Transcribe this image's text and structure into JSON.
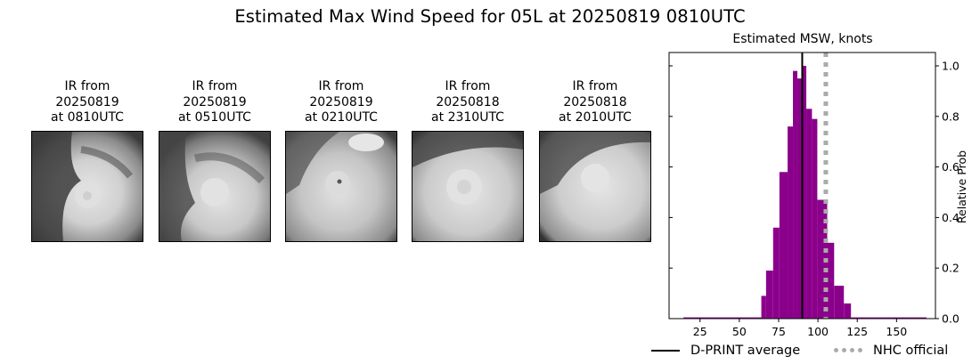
{
  "title": "Estimated Max Wind Speed for 05L at 20250819 0810UTC",
  "ir_panels": [
    {
      "line1": "IR from",
      "line2": "20250819",
      "line3": "at 0810UTC"
    },
    {
      "line1": "IR from",
      "line2": "20250819",
      "line3": "at 0510UTC"
    },
    {
      "line1": "IR from",
      "line2": "20250819",
      "line3": "at 0210UTC"
    },
    {
      "line1": "IR from",
      "line2": "20250818",
      "line3": "at 2310UTC"
    },
    {
      "line1": "IR from",
      "line2": "20250818",
      "line3": "at 2010UTC"
    }
  ],
  "colors": {
    "histogram": "#8b008b",
    "dprint_line": "#000000",
    "nhc_line": "#aaaaaa"
  },
  "chart_data": {
    "type": "bar",
    "title": "Estimated MSW, knots",
    "xlabel": "",
    "ylabel": "Relative Prob",
    "xlim": [
      6,
      175
    ],
    "ylim": [
      0,
      1.05
    ],
    "xticks": [
      25,
      50,
      75,
      100,
      125,
      150
    ],
    "yticks": [
      0.0,
      0.2,
      0.4,
      0.6,
      0.8,
      1.0
    ],
    "ytick_labels": [
      "0.0",
      "0.2",
      "0.4",
      "0.6",
      "0.8",
      "1.0"
    ],
    "y_axis_side": "right",
    "grid": false,
    "bins": [
      {
        "x0": 14.5,
        "x1": 64.0,
        "value": 0.005
      },
      {
        "x0": 64.0,
        "x1": 67.0,
        "value": 0.09
      },
      {
        "x0": 67.0,
        "x1": 71.5,
        "value": 0.19
      },
      {
        "x0": 71.5,
        "x1": 75.5,
        "value": 0.36
      },
      {
        "x0": 75.5,
        "x1": 80.7,
        "value": 0.58
      },
      {
        "x0": 80.7,
        "x1": 84.1,
        "value": 0.76
      },
      {
        "x0": 84.1,
        "x1": 86.9,
        "value": 0.98
      },
      {
        "x0": 86.9,
        "x1": 89.8,
        "value": 0.95
      },
      {
        "x0": 89.8,
        "x1": 92.6,
        "value": 1.0
      },
      {
        "x0": 92.6,
        "x1": 96.2,
        "value": 0.83
      },
      {
        "x0": 96.2,
        "x1": 99.6,
        "value": 0.79
      },
      {
        "x0": 99.6,
        "x1": 105.9,
        "value": 0.47
      },
      {
        "x0": 105.9,
        "x1": 110.3,
        "value": 0.3
      },
      {
        "x0": 110.3,
        "x1": 116.5,
        "value": 0.13
      },
      {
        "x0": 116.5,
        "x1": 121.0,
        "value": 0.06
      },
      {
        "x0": 121.0,
        "x1": 169.0,
        "value": 0.005
      }
    ],
    "vlines": [
      {
        "name": "D-PRINT average",
        "x": 90,
        "style": "solid",
        "color": "#000000"
      },
      {
        "name": "NHC official",
        "x": 105,
        "style": "dotted",
        "color": "#aaaaaa"
      }
    ],
    "legend": {
      "position": "bottom",
      "entries": [
        "D-PRINT average",
        "NHC official"
      ]
    }
  }
}
